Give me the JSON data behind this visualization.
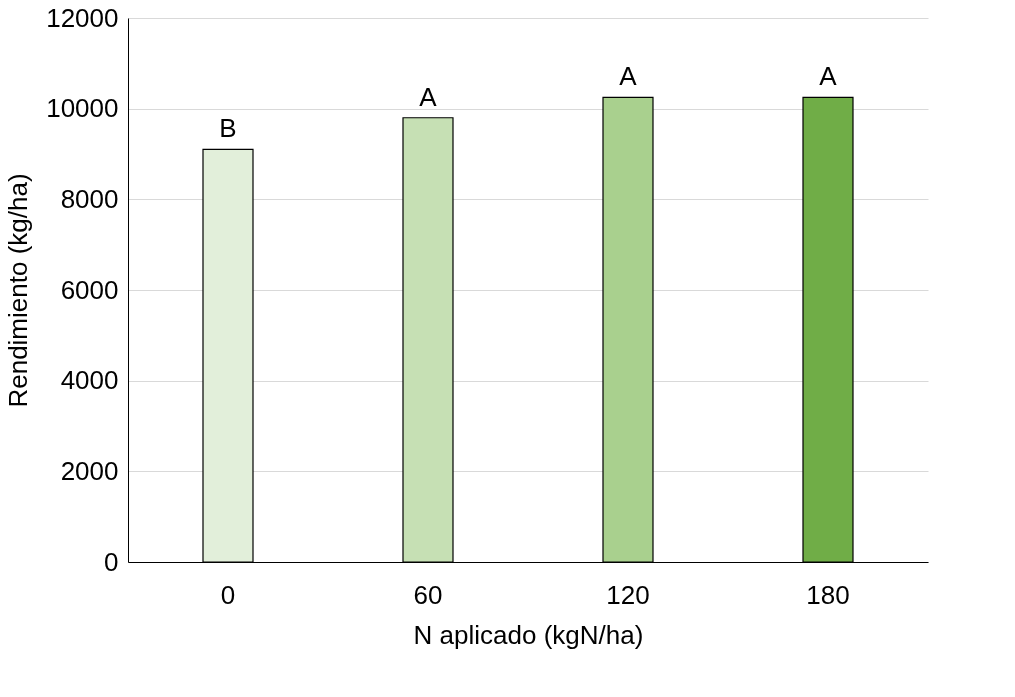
{
  "chart_data": {
    "type": "bar",
    "xlabel": "N aplicado (kgN/ha)",
    "ylabel": "Rendimiento (kg/ha)",
    "categories": [
      "0",
      "60",
      "120",
      "180"
    ],
    "values": [
      9100,
      9800,
      10250,
      10250
    ],
    "colors": [
      "#e2efda",
      "#c6e0b4",
      "#a9d08e",
      "#70ad47"
    ],
    "ylim": [
      0,
      12000
    ],
    "yticks": [
      0,
      2000,
      4000,
      6000,
      8000,
      10000,
      12000
    ],
    "grid": "y",
    "annotations": [
      {
        "text": "B",
        "x": "0",
        "y": 9100
      },
      {
        "text": "A",
        "x": "60",
        "y": 9800
      },
      {
        "text": "A",
        "x": "120",
        "y": 10250
      },
      {
        "text": "A",
        "x": "180",
        "y": 10250
      }
    ]
  }
}
